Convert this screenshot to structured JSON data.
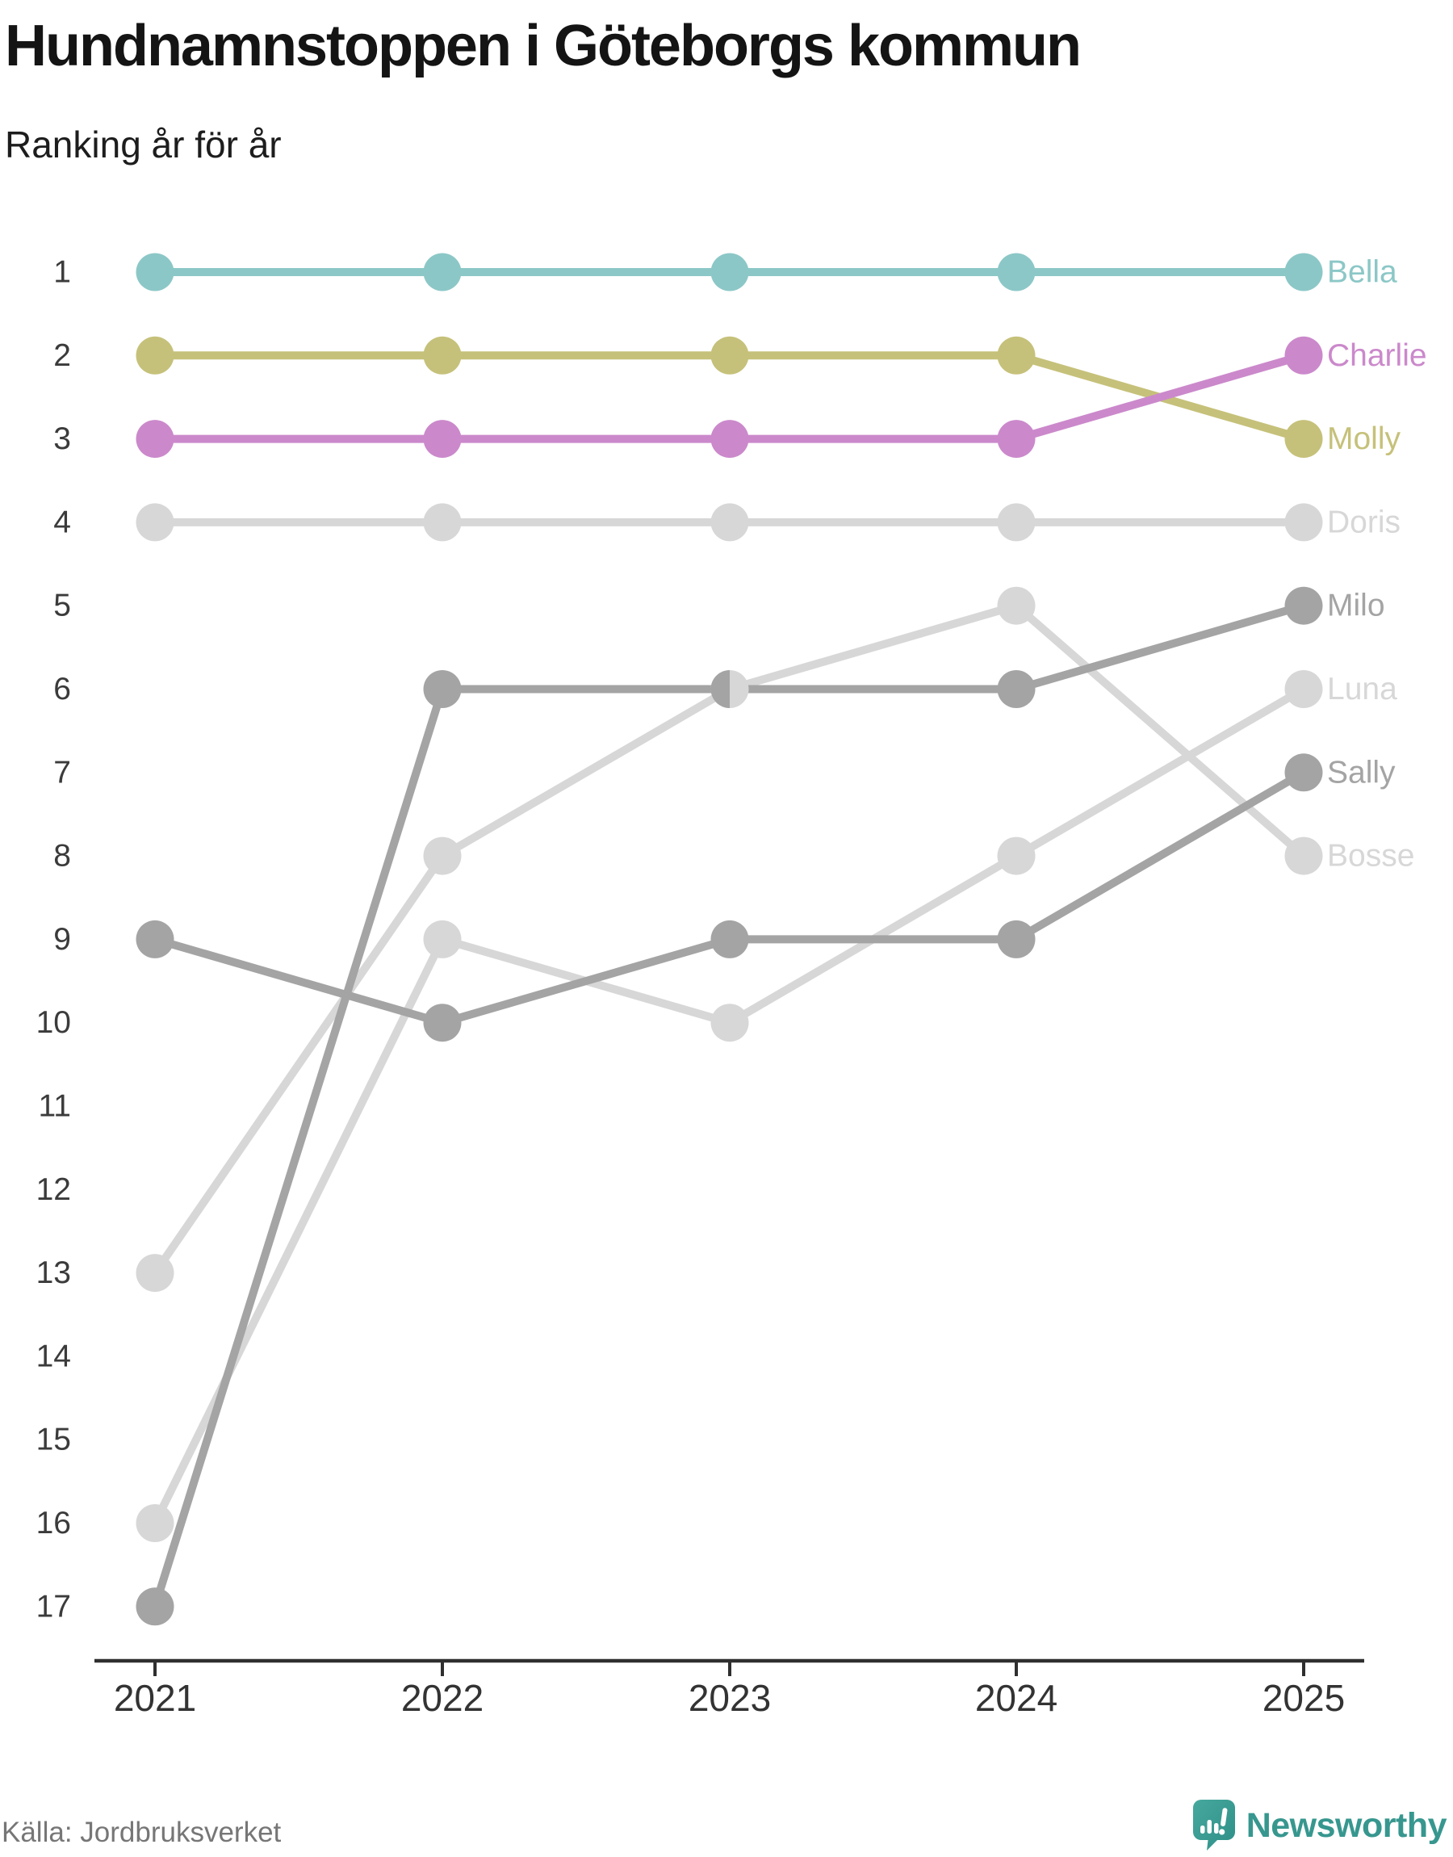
{
  "header": {
    "title": "Hundnamnstoppen i Göteborgs kommun",
    "subtitle": "Ranking år för år"
  },
  "chart_data": {
    "type": "line",
    "variant": "bump-ranking",
    "x": [
      "2021",
      "2022",
      "2023",
      "2024",
      "2025"
    ],
    "rank_ticks": [
      "1",
      "2",
      "3",
      "4",
      "5",
      "6",
      "7",
      "8",
      "9",
      "10",
      "11",
      "12",
      "13",
      "14",
      "15",
      "16",
      "17"
    ],
    "ylim": [
      1,
      17
    ],
    "grid": false,
    "legend_position": "right-end-labels",
    "series": [
      {
        "name": "Doris",
        "color": "#d7d7d7",
        "values": [
          4,
          4,
          4,
          4,
          4
        ]
      },
      {
        "name": "Luna",
        "color": "#d7d7d7",
        "values": [
          16,
          9,
          10,
          8,
          6
        ]
      },
      {
        "name": "Bosse",
        "color": "#d7d7d7",
        "values": [
          13,
          8,
          6,
          5,
          8
        ]
      },
      {
        "name": "Sally",
        "color": "#a4a4a4",
        "values": [
          9,
          10,
          9,
          9,
          7
        ]
      },
      {
        "name": "Milo",
        "color": "#a4a4a4",
        "values": [
          17,
          6,
          6,
          6,
          5
        ]
      },
      {
        "name": "Molly",
        "color": "#c6c17a",
        "values": [
          2,
          2,
          2,
          2,
          3
        ]
      },
      {
        "name": "Bella",
        "color": "#8cc7c7",
        "values": [
          1,
          1,
          1,
          1,
          1
        ]
      },
      {
        "name": "Charlie",
        "color": "#cb89cb",
        "values": [
          3,
          3,
          3,
          3,
          2
        ]
      }
    ],
    "axis_color": "#2f2f2f",
    "tick_label_color": "#333333",
    "rank_label_color": "#3b3b3b"
  },
  "footer": {
    "source": "Källa: Jordbruksverket",
    "brand": "Newsworthy",
    "brand_color": "#37978f",
    "brand_icon": "speech-bubble-bar-chart-icon"
  }
}
